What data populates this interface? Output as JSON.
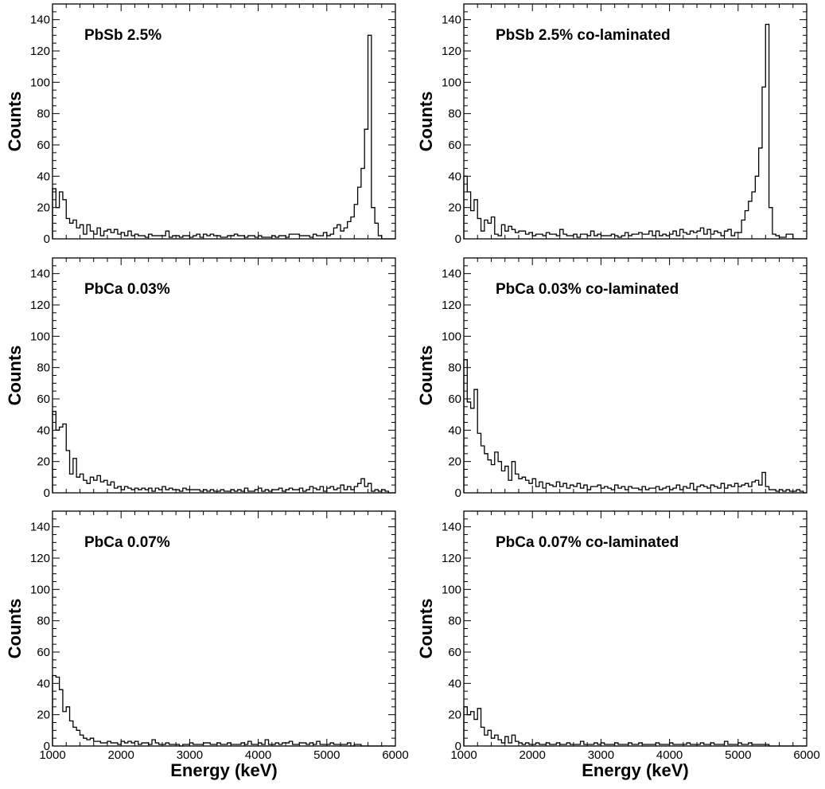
{
  "figure": {
    "xlabel": "Energy (keV)",
    "ylabel": "Counts"
  },
  "chart_data": [
    {
      "type": "histogram",
      "title": "PbSb 2.5%",
      "xlabel": "",
      "ylabel": "Counts",
      "xlim": [
        1000,
        6000
      ],
      "ylim": [
        0,
        150
      ],
      "x_ticks": [
        1000,
        2000,
        3000,
        4000,
        5000,
        6000
      ],
      "y_ticks": [
        0,
        20,
        40,
        60,
        80,
        100,
        120,
        140
      ],
      "bin_width": 50,
      "x_start": 1000,
      "values": [
        32,
        20,
        30,
        25,
        13,
        10,
        12,
        7,
        9,
        3,
        9,
        5,
        3,
        7,
        2,
        5,
        6,
        4,
        6,
        3,
        4,
        2,
        5,
        2,
        3,
        2,
        2,
        1,
        3,
        2,
        2,
        2,
        2,
        5,
        1,
        2,
        2,
        1,
        2,
        2,
        1,
        2,
        3,
        1,
        3,
        2,
        3,
        2,
        2,
        1,
        1,
        2,
        2,
        3,
        2,
        2,
        1,
        2,
        2,
        1,
        2,
        1,
        1,
        1,
        2,
        1,
        2,
        2,
        1,
        3,
        3,
        3,
        2,
        2,
        2,
        1,
        3,
        2,
        2,
        4,
        2,
        3,
        7,
        9,
        5,
        7,
        11,
        14,
        22,
        33,
        45,
        70,
        130,
        20,
        10,
        2,
        0,
        0,
        0,
        0
      ]
    },
    {
      "type": "histogram",
      "title": "PbSb 2.5% co-laminated",
      "xlabel": "",
      "ylabel": "Counts",
      "xlim": [
        1000,
        6000
      ],
      "ylim": [
        0,
        150
      ],
      "x_ticks": [
        1000,
        2000,
        3000,
        4000,
        5000,
        6000
      ],
      "y_ticks": [
        0,
        20,
        40,
        60,
        80,
        100,
        120,
        140
      ],
      "bin_width": 50,
      "x_start": 1000,
      "values": [
        40,
        30,
        18,
        25,
        13,
        5,
        12,
        10,
        14,
        3,
        2,
        9,
        5,
        8,
        6,
        4,
        5,
        5,
        3,
        4,
        2,
        3,
        3,
        2,
        4,
        3,
        3,
        2,
        6,
        3,
        2,
        2,
        3,
        1,
        3,
        3,
        2,
        5,
        2,
        3,
        2,
        2,
        2,
        3,
        2,
        1,
        2,
        4,
        2,
        3,
        3,
        4,
        3,
        3,
        5,
        2,
        5,
        2,
        3,
        2,
        3,
        5,
        2,
        6,
        4,
        3,
        5,
        4,
        5,
        7,
        3,
        6,
        3,
        5,
        4,
        2,
        5,
        6,
        2,
        4,
        4,
        12,
        18,
        24,
        30,
        40,
        58,
        97,
        137,
        20,
        3,
        2,
        1,
        1,
        3,
        3,
        0,
        0,
        0,
        0
      ]
    },
    {
      "type": "histogram",
      "title": "PbCa 0.03%",
      "xlabel": "",
      "ylabel": "Counts",
      "xlim": [
        1000,
        6000
      ],
      "ylim": [
        0,
        150
      ],
      "x_ticks": [
        1000,
        2000,
        3000,
        4000,
        5000,
        6000
      ],
      "y_ticks": [
        0,
        20,
        40,
        60,
        80,
        100,
        120,
        140
      ],
      "bin_width": 50,
      "x_start": 1000,
      "values": [
        52,
        40,
        42,
        44,
        27,
        12,
        22,
        10,
        12,
        8,
        6,
        10,
        8,
        11,
        7,
        8,
        5,
        7,
        3,
        4,
        2,
        4,
        3,
        2,
        3,
        2,
        3,
        2,
        3,
        1,
        3,
        2,
        4,
        2,
        3,
        2,
        2,
        1,
        3,
        2,
        2,
        2,
        2,
        1,
        2,
        1,
        2,
        1,
        1,
        2,
        1,
        1,
        2,
        1,
        2,
        1,
        3,
        1,
        1,
        2,
        3,
        1,
        2,
        1,
        2,
        2,
        3,
        1,
        2,
        3,
        2,
        2,
        3,
        1,
        2,
        4,
        3,
        2,
        4,
        1,
        3,
        4,
        2,
        3,
        5,
        2,
        4,
        2,
        4,
        6,
        9,
        4,
        6,
        1,
        2,
        1,
        2,
        1,
        0,
        0
      ]
    },
    {
      "type": "histogram",
      "title": "PbCa 0.03% co-laminated",
      "xlabel": "",
      "ylabel": "Counts",
      "xlim": [
        1000,
        6000
      ],
      "ylim": [
        0,
        150
      ],
      "x_ticks": [
        1000,
        2000,
        3000,
        4000,
        5000,
        6000
      ],
      "y_ticks": [
        0,
        20,
        40,
        60,
        80,
        100,
        120,
        140
      ],
      "bin_width": 50,
      "x_start": 1000,
      "values": [
        85,
        58,
        54,
        66,
        38,
        30,
        25,
        21,
        18,
        26,
        20,
        14,
        17,
        8,
        20,
        12,
        9,
        10,
        8,
        6,
        9,
        4,
        7,
        3,
        6,
        5,
        4,
        7,
        4,
        6,
        3,
        5,
        4,
        6,
        3,
        5,
        2,
        4,
        4,
        5,
        3,
        4,
        3,
        2,
        5,
        3,
        4,
        2,
        4,
        3,
        3,
        2,
        4,
        2,
        3,
        3,
        4,
        2,
        3,
        4,
        2,
        3,
        5,
        2,
        4,
        3,
        6,
        2,
        4,
        5,
        4,
        3,
        5,
        4,
        3,
        6,
        3,
        5,
        4,
        6,
        4,
        5,
        6,
        4,
        7,
        8,
        5,
        13,
        4,
        2,
        2,
        1,
        2,
        1,
        2,
        1,
        1,
        2,
        1,
        0
      ]
    },
    {
      "type": "histogram",
      "title": "PbCa 0.07%",
      "xlabel": "Energy (keV)",
      "ylabel": "Counts",
      "xlim": [
        1000,
        6000
      ],
      "ylim": [
        0,
        150
      ],
      "x_ticks": [
        1000,
        2000,
        3000,
        4000,
        5000,
        6000
      ],
      "y_ticks": [
        0,
        20,
        40,
        60,
        80,
        100,
        120,
        140
      ],
      "bin_width": 50,
      "x_start": 1000,
      "values": [
        45,
        44,
        36,
        22,
        25,
        16,
        12,
        10,
        7,
        5,
        4,
        5,
        3,
        3,
        2,
        2,
        3,
        2,
        2,
        1,
        3,
        2,
        3,
        2,
        3,
        1,
        2,
        2,
        1,
        4,
        2,
        1,
        1,
        2,
        1,
        1,
        1,
        0,
        1,
        1,
        2,
        1,
        1,
        1,
        2,
        2,
        1,
        1,
        2,
        1,
        1,
        2,
        1,
        1,
        1,
        2,
        1,
        3,
        1,
        1,
        2,
        1,
        4,
        1,
        1,
        2,
        1,
        2,
        2,
        3,
        1,
        1,
        2,
        2,
        1,
        2,
        1,
        3,
        1,
        1,
        1,
        2,
        1,
        1,
        1,
        1,
        2,
        0,
        1,
        1,
        0,
        0,
        0,
        0,
        0,
        0,
        0,
        0,
        0,
        0
      ]
    },
    {
      "type": "histogram",
      "title": "PbCa 0.07% co-laminated",
      "xlabel": "Energy (keV)",
      "ylabel": "Counts",
      "xlim": [
        1000,
        6000
      ],
      "ylim": [
        0,
        150
      ],
      "x_ticks": [
        1000,
        2000,
        3000,
        4000,
        5000,
        6000
      ],
      "y_ticks": [
        0,
        20,
        40,
        60,
        80,
        100,
        120,
        140
      ],
      "bin_width": 50,
      "x_start": 1000,
      "values": [
        25,
        20,
        22,
        17,
        24,
        12,
        7,
        10,
        5,
        7,
        4,
        2,
        6,
        2,
        7,
        3,
        2,
        1,
        2,
        1,
        1,
        2,
        1,
        1,
        2,
        1,
        1,
        2,
        1,
        1,
        2,
        1,
        1,
        1,
        3,
        1,
        1,
        1,
        2,
        1,
        2,
        1,
        1,
        1,
        2,
        1,
        1,
        1,
        2,
        1,
        1,
        2,
        1,
        1,
        1,
        1,
        2,
        1,
        1,
        1,
        2,
        1,
        1,
        1,
        1,
        2,
        1,
        1,
        1,
        2,
        1,
        1,
        2,
        1,
        1,
        1,
        3,
        1,
        1,
        1,
        2,
        1,
        1,
        2,
        1,
        1,
        1,
        1,
        1,
        0,
        0,
        0,
        0,
        0,
        0,
        0,
        0,
        0,
        0,
        0
      ]
    }
  ]
}
